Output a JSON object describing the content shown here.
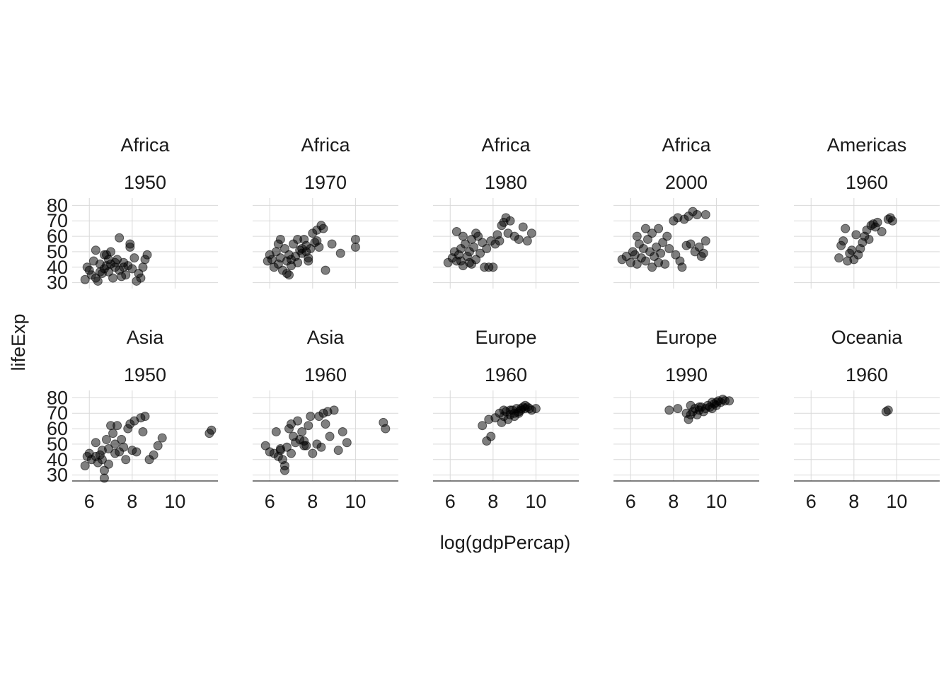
{
  "chart_data": {
    "type": "scatter",
    "xlabel": "log(gdpPercap)",
    "ylabel": "lifeExp",
    "xlim": [
      5.2,
      12.0
    ],
    "ylim": [
      28,
      82
    ],
    "xticks": [
      6,
      8,
      10
    ],
    "yticks": [
      30,
      40,
      50,
      60,
      70,
      80
    ],
    "grid": true,
    "layout": "2 rows x 5 columns facet grid",
    "facets": [
      {
        "strip": [
          "Africa",
          "1950"
        ],
        "points": [
          [
            5.8,
            32
          ],
          [
            5.9,
            40
          ],
          [
            6.0,
            38
          ],
          [
            6.1,
            35
          ],
          [
            6.2,
            44
          ],
          [
            6.3,
            33
          ],
          [
            6.4,
            31
          ],
          [
            6.5,
            42
          ],
          [
            6.6,
            36
          ],
          [
            6.7,
            39
          ],
          [
            6.8,
            48
          ],
          [
            6.9,
            37
          ],
          [
            7.0,
            42
          ],
          [
            7.1,
            33
          ],
          [
            7.2,
            40
          ],
          [
            7.3,
            45
          ],
          [
            7.4,
            38
          ],
          [
            7.5,
            34
          ],
          [
            7.6,
            43
          ],
          [
            7.7,
            35
          ],
          [
            7.8,
            41
          ],
          [
            7.9,
            55
          ],
          [
            8.0,
            39
          ],
          [
            8.1,
            46
          ],
          [
            8.2,
            31
          ],
          [
            8.3,
            36
          ],
          [
            8.4,
            33
          ],
          [
            8.5,
            40
          ],
          [
            6.3,
            51
          ],
          [
            6.7,
            48
          ],
          [
            7.4,
            59
          ],
          [
            7.9,
            53
          ],
          [
            8.7,
            48
          ],
          [
            7.0,
            50
          ],
          [
            6.9,
            45
          ],
          [
            7.2,
            43
          ],
          [
            6.5,
            37
          ],
          [
            6.8,
            41
          ],
          [
            7.6,
            40
          ],
          [
            8.6,
            45
          ]
        ]
      },
      {
        "strip": [
          "Africa",
          "1970"
        ],
        "points": [
          [
            5.9,
            44
          ],
          [
            6.0,
            48
          ],
          [
            6.1,
            45
          ],
          [
            6.2,
            40
          ],
          [
            6.3,
            50
          ],
          [
            6.4,
            42
          ],
          [
            6.5,
            46
          ],
          [
            6.6,
            38
          ],
          [
            6.7,
            52
          ],
          [
            6.8,
            44
          ],
          [
            6.9,
            48
          ],
          [
            7.0,
            41
          ],
          [
            7.1,
            55
          ],
          [
            7.2,
            47
          ],
          [
            7.3,
            43
          ],
          [
            7.4,
            51
          ],
          [
            7.5,
            49
          ],
          [
            7.6,
            58
          ],
          [
            7.7,
            54
          ],
          [
            7.8,
            46
          ],
          [
            7.9,
            52
          ],
          [
            8.0,
            62
          ],
          [
            8.1,
            56
          ],
          [
            8.2,
            64
          ],
          [
            8.3,
            53
          ],
          [
            8.4,
            67
          ],
          [
            8.5,
            65
          ],
          [
            8.6,
            38
          ],
          [
            8.9,
            55
          ],
          [
            9.3,
            49
          ],
          [
            10.0,
            53
          ],
          [
            10.0,
            58
          ],
          [
            6.5,
            58
          ],
          [
            6.8,
            36
          ],
          [
            7.0,
            45
          ],
          [
            7.3,
            58
          ],
          [
            7.8,
            44
          ],
          [
            8.2,
            57
          ],
          [
            6.4,
            55
          ],
          [
            7.5,
            52
          ],
          [
            6.9,
            35
          ],
          [
            7.7,
            50
          ]
        ]
      },
      {
        "strip": [
          "Africa",
          "1980"
        ],
        "points": [
          [
            5.9,
            43
          ],
          [
            6.1,
            46
          ],
          [
            6.2,
            50
          ],
          [
            6.3,
            44
          ],
          [
            6.4,
            48
          ],
          [
            6.5,
            52
          ],
          [
            6.6,
            41
          ],
          [
            6.7,
            55
          ],
          [
            6.8,
            47
          ],
          [
            6.9,
            50
          ],
          [
            7.0,
            58
          ],
          [
            7.1,
            53
          ],
          [
            7.2,
            45
          ],
          [
            7.3,
            60
          ],
          [
            7.4,
            49
          ],
          [
            7.5,
            56
          ],
          [
            7.6,
            40
          ],
          [
            7.7,
            52
          ],
          [
            7.8,
            40
          ],
          [
            7.9,
            57
          ],
          [
            8.0,
            40
          ],
          [
            8.1,
            55
          ],
          [
            8.2,
            61
          ],
          [
            8.3,
            57
          ],
          [
            8.4,
            67
          ],
          [
            8.5,
            69
          ],
          [
            8.6,
            72
          ],
          [
            8.7,
            62
          ],
          [
            8.8,
            70
          ],
          [
            9.0,
            60
          ],
          [
            9.2,
            58
          ],
          [
            9.4,
            66
          ],
          [
            9.6,
            57
          ],
          [
            9.8,
            62
          ],
          [
            6.3,
            63
          ],
          [
            6.6,
            60
          ],
          [
            6.9,
            43
          ],
          [
            7.2,
            62
          ],
          [
            6.5,
            44
          ],
          [
            7.0,
            42
          ]
        ]
      },
      {
        "strip": [
          "Africa",
          "2000"
        ],
        "points": [
          [
            5.6,
            45
          ],
          [
            5.8,
            47
          ],
          [
            6.0,
            43
          ],
          [
            6.1,
            50
          ],
          [
            6.2,
            48
          ],
          [
            6.3,
            42
          ],
          [
            6.4,
            55
          ],
          [
            6.5,
            46
          ],
          [
            6.6,
            52
          ],
          [
            6.7,
            44
          ],
          [
            6.8,
            58
          ],
          [
            6.9,
            50
          ],
          [
            7.0,
            62
          ],
          [
            7.1,
            47
          ],
          [
            7.2,
            53
          ],
          [
            7.3,
            65
          ],
          [
            7.4,
            49
          ],
          [
            7.5,
            56
          ],
          [
            7.6,
            42
          ],
          [
            7.7,
            60
          ],
          [
            7.8,
            52
          ],
          [
            8.0,
            70
          ],
          [
            8.1,
            48
          ],
          [
            8.2,
            72
          ],
          [
            8.3,
            44
          ],
          [
            8.4,
            40
          ],
          [
            8.5,
            71
          ],
          [
            8.6,
            54
          ],
          [
            8.7,
            73
          ],
          [
            8.8,
            55
          ],
          [
            8.9,
            76
          ],
          [
            9.0,
            50
          ],
          [
            9.1,
            74
          ],
          [
            9.2,
            53
          ],
          [
            9.4,
            49
          ],
          [
            9.5,
            74
          ],
          [
            9.5,
            57
          ],
          [
            9.3,
            47
          ],
          [
            6.7,
            65
          ],
          [
            7.0,
            40
          ],
          [
            7.3,
            43
          ],
          [
            6.3,
            60
          ]
        ]
      },
      {
        "strip": [
          "Americas",
          "1960"
        ],
        "points": [
          [
            7.3,
            46
          ],
          [
            7.4,
            54
          ],
          [
            7.5,
            57
          ],
          [
            7.6,
            65
          ],
          [
            7.7,
            44
          ],
          [
            7.8,
            49
          ],
          [
            7.9,
            51
          ],
          [
            8.0,
            45
          ],
          [
            8.1,
            61
          ],
          [
            8.2,
            48
          ],
          [
            8.3,
            52
          ],
          [
            8.4,
            56
          ],
          [
            8.5,
            60
          ],
          [
            8.6,
            64
          ],
          [
            8.7,
            58
          ],
          [
            8.8,
            67
          ],
          [
            8.9,
            68
          ],
          [
            9.0,
            66
          ],
          [
            9.1,
            69
          ],
          [
            9.3,
            63
          ],
          [
            9.6,
            71
          ],
          [
            9.8,
            70
          ],
          [
            9.7,
            72
          ]
        ]
      },
      {
        "strip": [
          "Asia",
          "1950"
        ],
        "points": [
          [
            5.8,
            36
          ],
          [
            5.9,
            42
          ],
          [
            6.0,
            44
          ],
          [
            6.1,
            40
          ],
          [
            6.3,
            51
          ],
          [
            6.4,
            38
          ],
          [
            6.5,
            43
          ],
          [
            6.6,
            40
          ],
          [
            6.7,
            28
          ],
          [
            6.7,
            33
          ],
          [
            6.8,
            53
          ],
          [
            6.9,
            47
          ],
          [
            7.0,
            62
          ],
          [
            7.1,
            57
          ],
          [
            7.2,
            50
          ],
          [
            7.3,
            62
          ],
          [
            7.4,
            45
          ],
          [
            7.5,
            53
          ],
          [
            7.6,
            48
          ],
          [
            7.7,
            40
          ],
          [
            7.8,
            60
          ],
          [
            7.9,
            63
          ],
          [
            8.0,
            46
          ],
          [
            8.1,
            65
          ],
          [
            8.2,
            45
          ],
          [
            8.4,
            67
          ],
          [
            8.5,
            58
          ],
          [
            8.6,
            68
          ],
          [
            8.8,
            40
          ],
          [
            9.0,
            43
          ],
          [
            9.2,
            49
          ],
          [
            9.4,
            54
          ],
          [
            11.6,
            57
          ],
          [
            11.7,
            59
          ],
          [
            6.3,
            42
          ],
          [
            6.9,
            37
          ],
          [
            7.2,
            44
          ],
          [
            6.6,
            46
          ]
        ]
      },
      {
        "strip": [
          "Asia",
          "1960"
        ],
        "points": [
          [
            5.8,
            49
          ],
          [
            6.0,
            45
          ],
          [
            6.2,
            44
          ],
          [
            6.3,
            58
          ],
          [
            6.4,
            42
          ],
          [
            6.5,
            47
          ],
          [
            6.6,
            40
          ],
          [
            6.7,
            33
          ],
          [
            6.7,
            36
          ],
          [
            6.8,
            48
          ],
          [
            6.9,
            60
          ],
          [
            7.0,
            63
          ],
          [
            7.1,
            55
          ],
          [
            7.2,
            51
          ],
          [
            7.3,
            65
          ],
          [
            7.4,
            53
          ],
          [
            7.5,
            58
          ],
          [
            7.6,
            52
          ],
          [
            7.7,
            49
          ],
          [
            7.8,
            62
          ],
          [
            7.9,
            68
          ],
          [
            8.0,
            44
          ],
          [
            8.2,
            50
          ],
          [
            8.3,
            68
          ],
          [
            8.4,
            48
          ],
          [
            8.5,
            70
          ],
          [
            8.6,
            63
          ],
          [
            8.7,
            71
          ],
          [
            8.8,
            55
          ],
          [
            9.0,
            72
          ],
          [
            9.2,
            46
          ],
          [
            9.4,
            58
          ],
          [
            9.6,
            51
          ],
          [
            11.3,
            64
          ],
          [
            11.4,
            60
          ],
          [
            6.5,
            46
          ],
          [
            7.0,
            44
          ],
          [
            7.6,
            49
          ]
        ]
      },
      {
        "strip": [
          "Europe",
          "1960"
        ],
        "points": [
          [
            7.5,
            62
          ],
          [
            7.7,
            52
          ],
          [
            7.8,
            66
          ],
          [
            7.9,
            55
          ],
          [
            8.1,
            67
          ],
          [
            8.3,
            70
          ],
          [
            8.4,
            64
          ],
          [
            8.5,
            68
          ],
          [
            8.6,
            71
          ],
          [
            8.7,
            66
          ],
          [
            8.8,
            69
          ],
          [
            8.9,
            72
          ],
          [
            9.0,
            70
          ],
          [
            9.1,
            73
          ],
          [
            9.2,
            71
          ],
          [
            9.3,
            72
          ],
          [
            9.4,
            74
          ],
          [
            9.5,
            73
          ],
          [
            9.6,
            74
          ],
          [
            9.7,
            73
          ],
          [
            9.8,
            72
          ],
          [
            10.0,
            73
          ],
          [
            8.5,
            72
          ],
          [
            8.8,
            72
          ],
          [
            9.2,
            70
          ],
          [
            9.5,
            75
          ],
          [
            9.0,
            68
          ],
          [
            9.3,
            73
          ]
        ]
      },
      {
        "strip": [
          "Europe",
          "1990"
        ],
        "points": [
          [
            7.8,
            72
          ],
          [
            8.2,
            73
          ],
          [
            8.6,
            70
          ],
          [
            8.7,
            66
          ],
          [
            8.8,
            75
          ],
          [
            8.9,
            71
          ],
          [
            9.0,
            73
          ],
          [
            9.1,
            69
          ],
          [
            9.2,
            72
          ],
          [
            9.3,
            74
          ],
          [
            9.4,
            71
          ],
          [
            9.5,
            73
          ],
          [
            9.6,
            75
          ],
          [
            9.7,
            74
          ],
          [
            9.8,
            77
          ],
          [
            9.9,
            76
          ],
          [
            10.0,
            77
          ],
          [
            10.1,
            78
          ],
          [
            10.2,
            77
          ],
          [
            10.3,
            79
          ],
          [
            10.4,
            78
          ],
          [
            10.6,
            78
          ],
          [
            8.8,
            69
          ],
          [
            9.2,
            74
          ],
          [
            9.8,
            73
          ],
          [
            10.0,
            75
          ]
        ]
      },
      {
        "strip": [
          "Oceania",
          "1960"
        ],
        "points": [
          [
            9.5,
            71
          ],
          [
            9.6,
            72
          ]
        ]
      }
    ]
  }
}
